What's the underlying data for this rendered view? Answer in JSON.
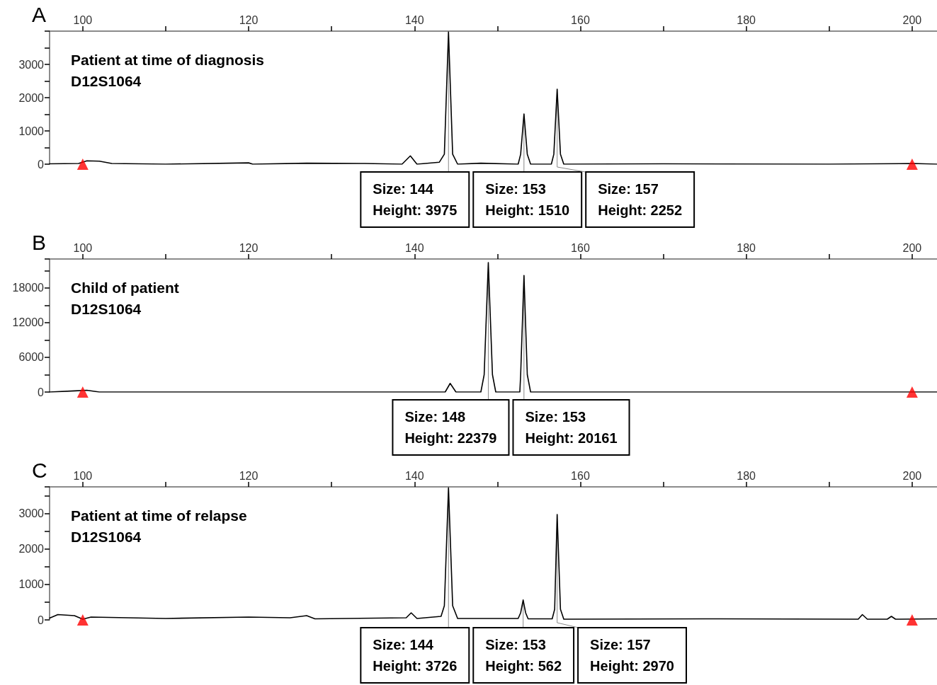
{
  "chart_data": [
    {
      "type": "line",
      "title": "A",
      "xlim": [
        96,
        203
      ],
      "xticks": [
        100,
        {
          "value": 110,
          "label": null
        },
        120,
        {
          "value": 130,
          "label": null
        },
        140,
        {
          "value": 150,
          "label": null
        },
        160,
        {
          "value": 170,
          "label": null
        },
        180,
        {
          "value": 190,
          "label": null
        },
        200
      ],
      "ylim": [
        0,
        4000
      ],
      "yticks": [
        0,
        {
          "value": 500,
          "label": null
        },
        1000,
        {
          "value": 1500,
          "label": null
        },
        2000,
        {
          "value": 2500,
          "label": null
        },
        3000,
        {
          "value": 3500,
          "label": null
        }
      ],
      "marker": "none",
      "line_style": "solid",
      "series": [
        {
          "color": "#000000",
          "x": [
            96,
            99.5,
            100.5,
            102,
            103.5,
            110,
            120,
            120.5,
            127,
            134,
            138.5,
            139.5,
            140.3,
            143,
            143.6,
            144.1,
            144.6,
            145.2,
            148,
            152.5,
            152.8,
            153.2,
            153.6,
            154,
            156.5,
            156.8,
            157.2,
            157.6,
            158,
            170,
            190,
            200,
            203
          ],
          "values": [
            10,
            20,
            100,
            90,
            20,
            0,
            40,
            0,
            30,
            20,
            0,
            250,
            0,
            60,
            300,
            3975,
            300,
            0,
            30,
            0,
            300,
            1510,
            300,
            0,
            0,
            300,
            2252,
            300,
            0,
            10,
            0,
            20,
            0
          ]
        },
        {
          "type": "scatter",
          "marker": "triangle",
          "color": "#ff0000",
          "x": [
            100,
            200
          ],
          "values": [
            0,
            0
          ]
        }
      ],
      "annotations": [
        "Patient at time of diagnosis",
        "D12S1064",
        {
          "text": "Size: 144\nHeight: 3975",
          "x": 144.1,
          "y": 3975
        },
        {
          "text": "Size: 153\nHeight: 1510",
          "x": 153.2,
          "y": 1510
        },
        {
          "text": "Size: 157\nHeight: 2252",
          "x": 157.2,
          "y": 2252
        }
      ]
    },
    {
      "type": "line",
      "title": "B",
      "xlim": [
        96,
        203
      ],
      "xticks": [
        100,
        {
          "value": 110,
          "label": null
        },
        120,
        {
          "value": 130,
          "label": null
        },
        140,
        {
          "value": 150,
          "label": null
        },
        160,
        {
          "value": 170,
          "label": null
        },
        180,
        {
          "value": 190,
          "label": null
        },
        200
      ],
      "ylim": [
        0,
        23000
      ],
      "yticks": [
        0,
        {
          "value": 3000,
          "label": null
        },
        6000,
        {
          "value": 9000,
          "label": null
        },
        12000,
        {
          "value": 15000,
          "label": null
        },
        18000,
        {
          "value": 21000,
          "label": null
        }
      ],
      "marker": "none",
      "line_style": "solid",
      "series": [
        {
          "color": "#000000",
          "x": [
            96,
            99,
            100.5,
            102,
            143.7,
            144.3,
            145,
            148,
            148.4,
            148.9,
            149.4,
            149.8,
            152.7,
            152.8,
            153.2,
            153.6,
            154,
            203
          ],
          "values": [
            0,
            200,
            300,
            0,
            0,
            1500,
            0,
            0,
            3000,
            22379,
            3000,
            0,
            0,
            3000,
            20161,
            3000,
            0,
            0
          ]
        },
        {
          "type": "scatter",
          "marker": "triangle",
          "color": "#ff0000",
          "x": [
            100,
            200
          ],
          "values": [
            0,
            0
          ]
        }
      ],
      "annotations": [
        "Child of patient",
        "D12S1064",
        {
          "text": "Size: 148\nHeight: 22379",
          "x": 148.9,
          "y": 22379
        },
        {
          "text": "Size: 153\nHeight: 20161",
          "x": 153.2,
          "y": 20161
        }
      ]
    },
    {
      "type": "line",
      "title": "C",
      "xlim": [
        96,
        203
      ],
      "xticks": [
        100,
        {
          "value": 110,
          "label": null
        },
        120,
        {
          "value": 130,
          "label": null
        },
        140,
        {
          "value": 150,
          "label": null
        },
        160,
        {
          "value": 170,
          "label": null
        },
        180,
        {
          "value": 190,
          "label": null
        },
        200
      ],
      "ylim": [
        0,
        3750
      ],
      "yticks": [
        0,
        {
          "value": 500,
          "label": null
        },
        1000,
        {
          "value": 1500,
          "label": null
        },
        2000,
        {
          "value": 2500,
          "label": null
        },
        3000,
        {
          "value": 3500,
          "label": null
        }
      ],
      "marker": "none",
      "line_style": "solid",
      "series": [
        {
          "color": "#000000",
          "x": [
            96,
            97,
            99,
            100,
            101,
            110,
            120,
            125,
            127,
            128,
            139,
            139.6,
            140.3,
            143.2,
            143.6,
            144.1,
            144.6,
            145.2,
            152.5,
            152.8,
            153.1,
            153.4,
            153.7,
            156.6,
            156.9,
            157.2,
            157.6,
            158,
            175,
            193.5,
            194,
            194.6,
            197,
            197.5,
            198,
            203
          ],
          "values": [
            50,
            150,
            120,
            20,
            80,
            40,
            80,
            60,
            120,
            30,
            60,
            200,
            40,
            100,
            400,
            3726,
            400,
            40,
            40,
            200,
            562,
            200,
            30,
            30,
            300,
            2970,
            300,
            20,
            30,
            20,
            150,
            20,
            20,
            100,
            20,
            30
          ]
        },
        {
          "type": "scatter",
          "marker": "triangle",
          "color": "#ff0000",
          "x": [
            100,
            200
          ],
          "values": [
            0,
            0
          ]
        }
      ],
      "annotations": [
        "Patient at time of relapse",
        "D12S1064",
        {
          "text": "Size: 144\nHeight: 3726",
          "x": 144.1,
          "y": 3726
        },
        {
          "text": "Size: 153\nHeight: 562",
          "x": 153.1,
          "y": 562
        },
        {
          "text": "Size: 157\nHeight: 2970",
          "x": 157.2,
          "y": 2970
        }
      ]
    }
  ]
}
